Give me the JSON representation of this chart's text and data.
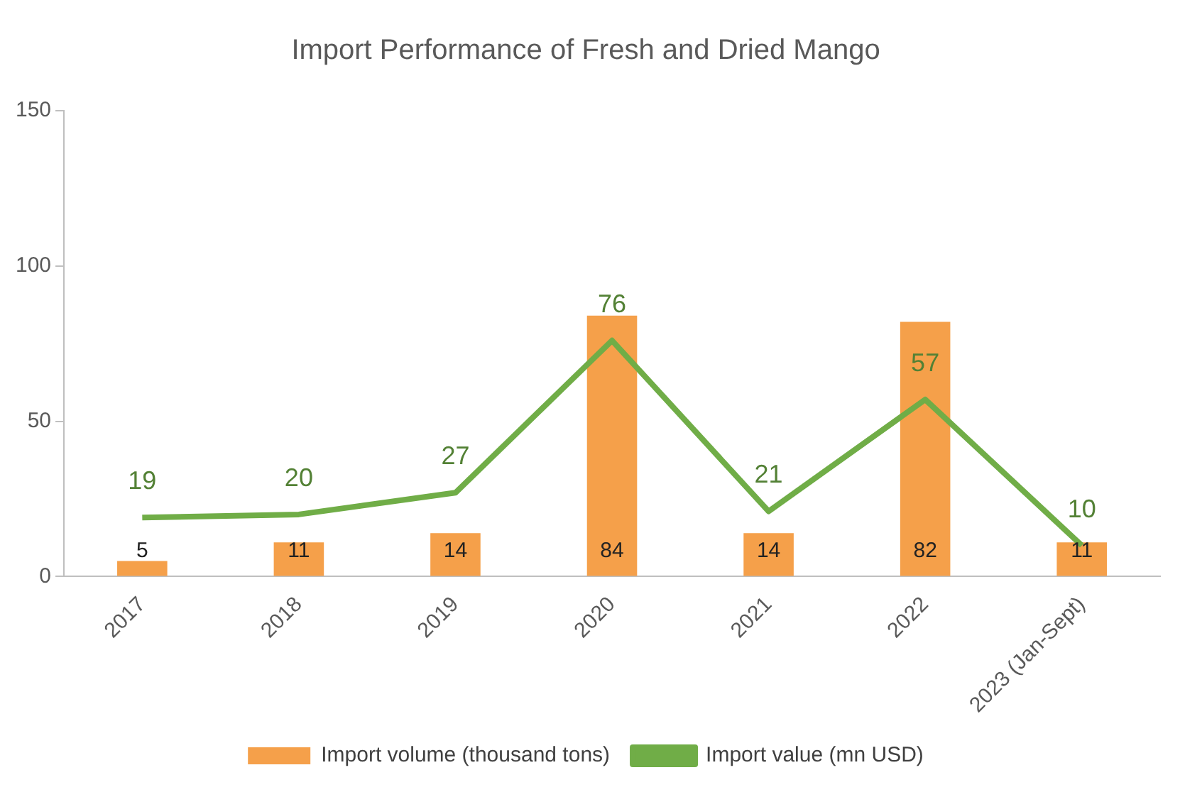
{
  "chart_data": {
    "type": "bar",
    "title": "Import Performance of Fresh and Dried Mango",
    "categories": [
      "2017",
      "2018",
      "2019",
      "2020",
      "2021",
      "2022",
      "2023 (Jan-Sept)"
    ],
    "series": [
      {
        "name": "Import volume (thousand tons)",
        "color": "#f5a04a",
        "values": [
          5,
          11,
          14,
          84,
          14,
          82,
          11
        ]
      },
      {
        "name": "Import value (mn USD)",
        "type": "line",
        "color": "#70ad47",
        "values": [
          19,
          20,
          27,
          76,
          21,
          57,
          10
        ]
      }
    ],
    "ylim": [
      0,
      150
    ],
    "yticks": [
      0,
      50,
      100,
      150
    ],
    "grid": false,
    "legend": "bottom",
    "data_labels": true,
    "marker": "none"
  }
}
